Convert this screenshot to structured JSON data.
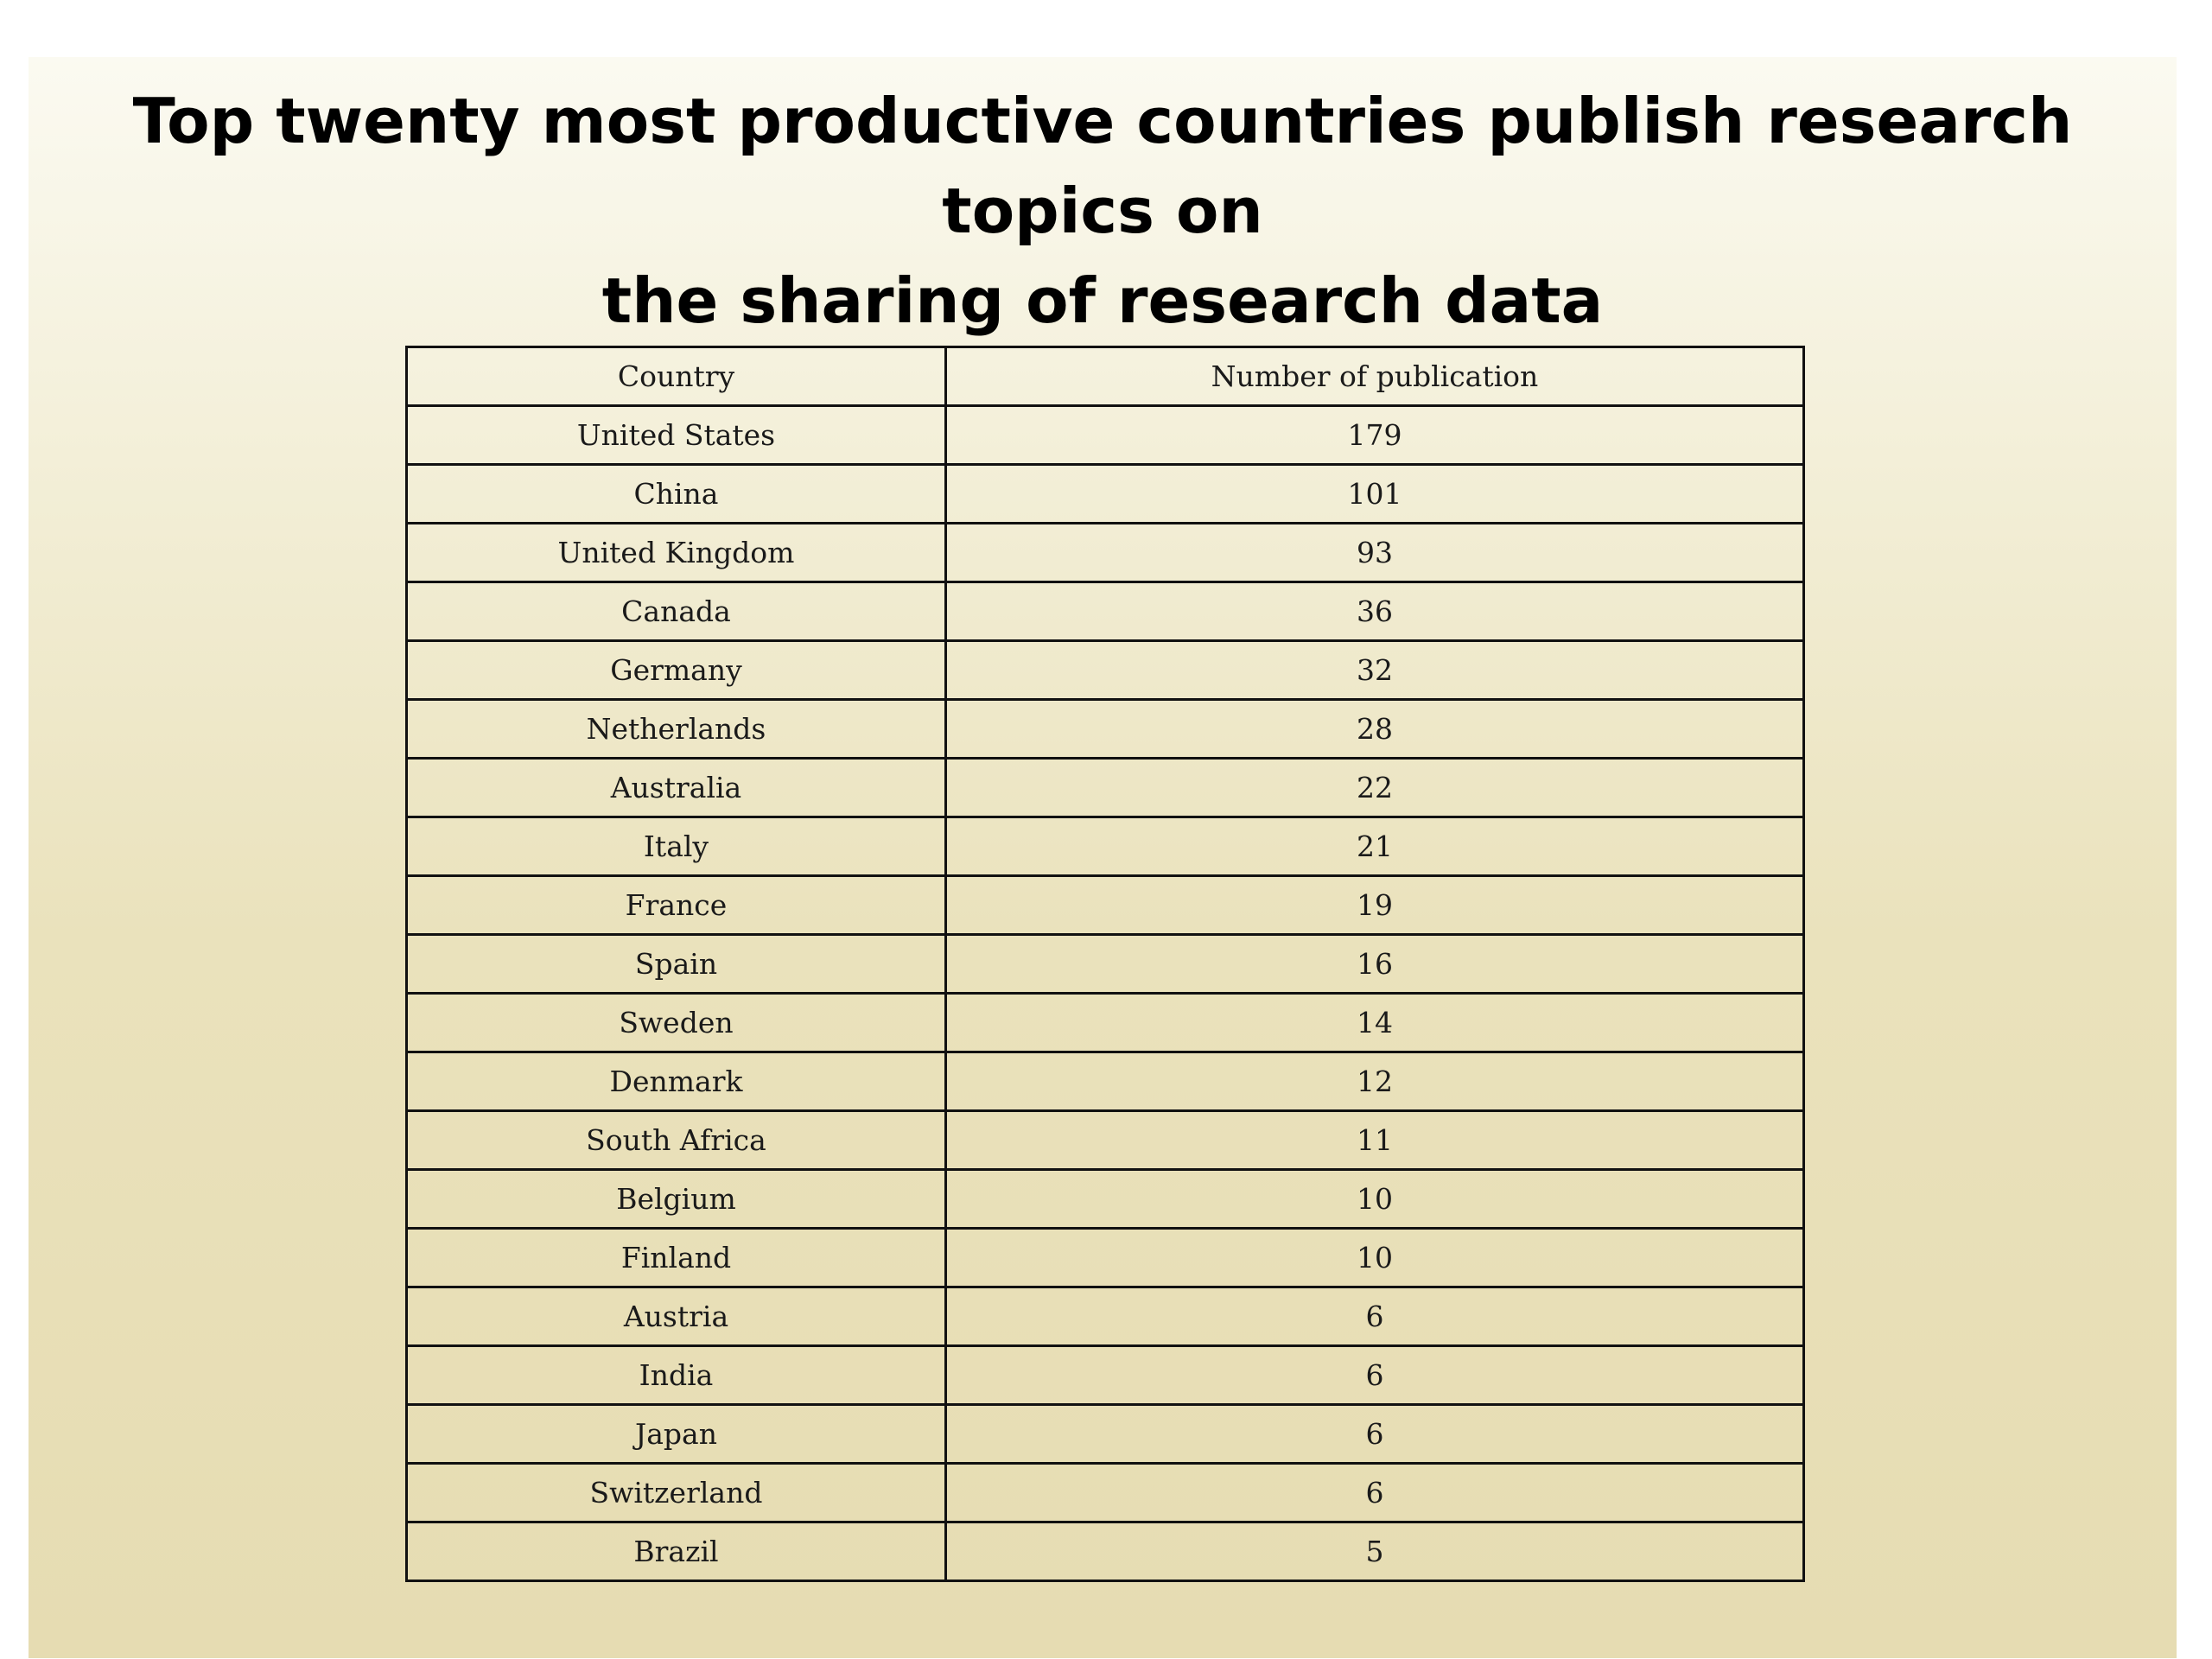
{
  "slide": {
    "title_line1": "Top twenty most productive countries publish research topics on",
    "title_line2": "the sharing of research data"
  },
  "table": {
    "headers": [
      "Country",
      "Number of publication"
    ],
    "rows": [
      {
        "country": "United States",
        "count": "179"
      },
      {
        "country": "China",
        "count": "101"
      },
      {
        "country": "United Kingdom",
        "count": "93"
      },
      {
        "country": "Canada",
        "count": "36"
      },
      {
        "country": "Germany",
        "count": "32"
      },
      {
        "country": "Netherlands",
        "count": "28"
      },
      {
        "country": "Australia",
        "count": "22"
      },
      {
        "country": "Italy",
        "count": "21"
      },
      {
        "country": "France",
        "count": "19"
      },
      {
        "country": "Spain",
        "count": "16"
      },
      {
        "country": "Sweden",
        "count": "14"
      },
      {
        "country": "Denmark",
        "count": "12"
      },
      {
        "country": "South Africa",
        "count": "11"
      },
      {
        "country": "Belgium",
        "count": "10"
      },
      {
        "country": "Finland",
        "count": "10"
      },
      {
        "country": "Austria",
        "count": "6"
      },
      {
        "country": "India",
        "count": "6"
      },
      {
        "country": "Japan",
        "count": "6"
      },
      {
        "country": "Switzerland",
        "count": "6"
      },
      {
        "country": "Brazil",
        "count": "5"
      }
    ]
  },
  "colors": {
    "background_top": "#fbfaf1",
    "background_bottom": "#e6dcb2",
    "border": "#111111",
    "title_text": "#000000"
  }
}
